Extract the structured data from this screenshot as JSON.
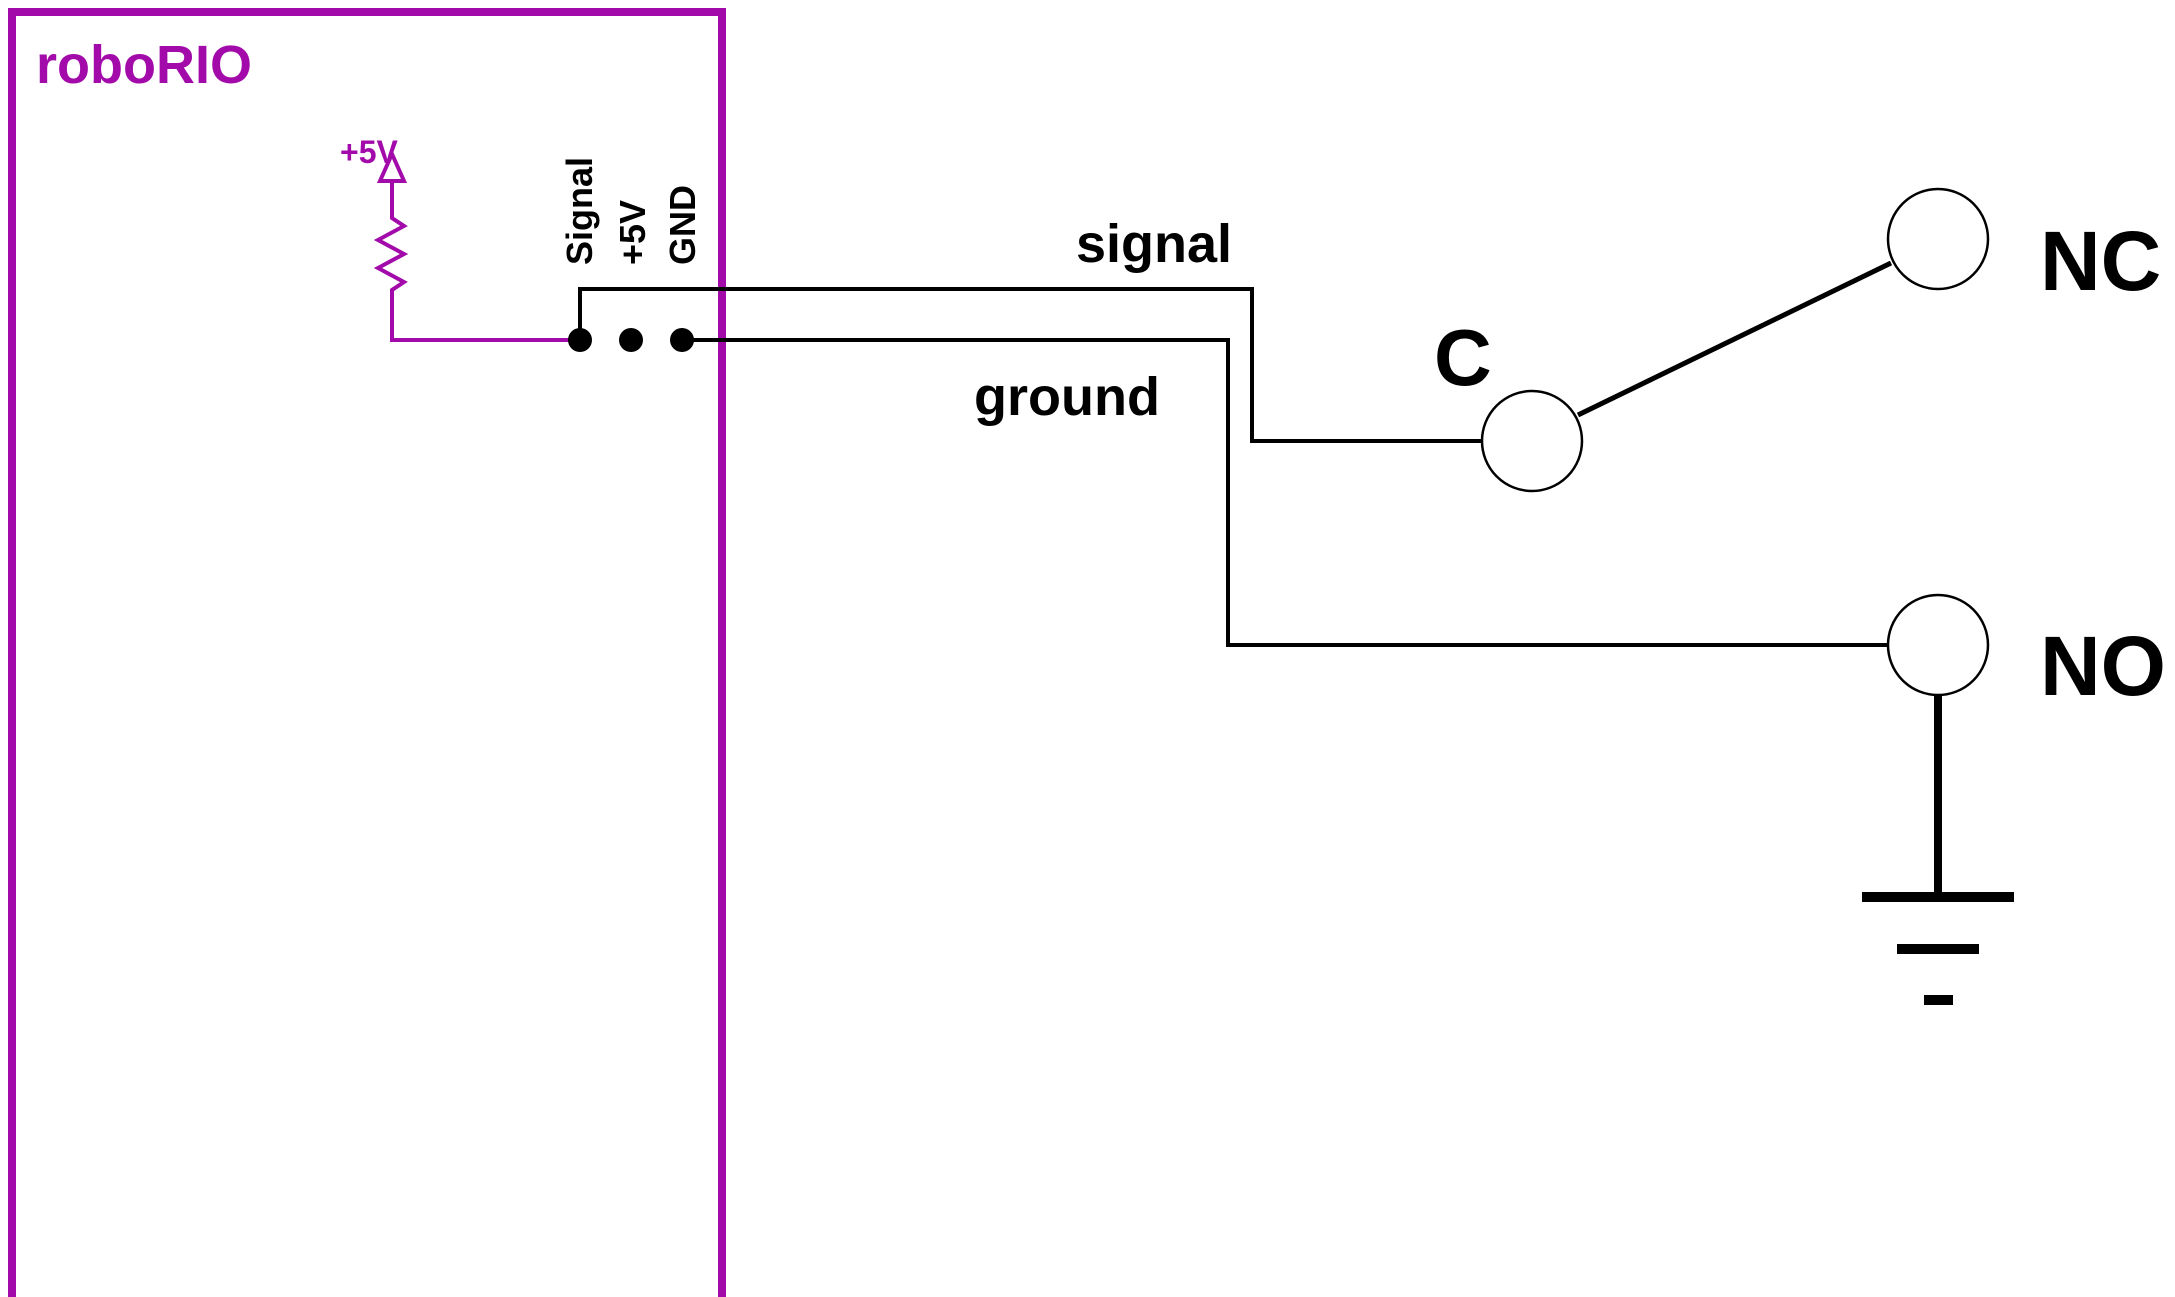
{
  "controller": {
    "name": "roboRIO",
    "supply_label": "+5V",
    "pins": [
      "Signal",
      "+5V",
      "GND"
    ]
  },
  "wires": {
    "signal_label": "signal",
    "ground_label": "ground"
  },
  "switch": {
    "common_label": "C",
    "normally_closed_label": "NC",
    "normally_open_label": "NO"
  },
  "colors": {
    "controller": "#A20BAA",
    "wiring": "#000000"
  },
  "icons": [
    "pullup-resistor-icon",
    "supply-arrow-icon",
    "ground-symbol-icon"
  ]
}
